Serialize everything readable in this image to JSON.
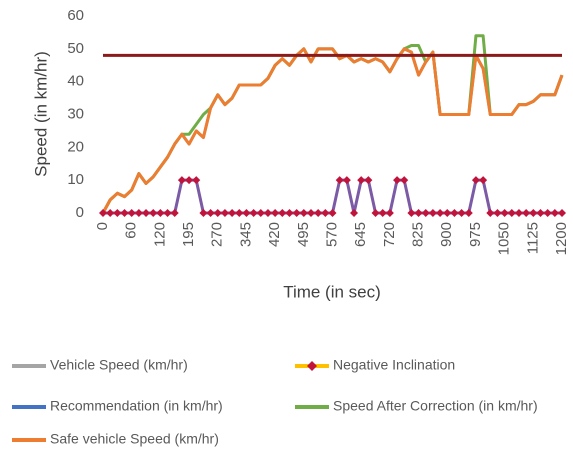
{
  "chart_data": {
    "type": "line",
    "xlabel": "Time (in sec)",
    "ylabel": "Speed (in km/hr)",
    "categories": [
      0,
      null,
      null,
      null,
      60,
      null,
      null,
      null,
      120,
      null,
      null,
      null,
      195,
      null,
      null,
      null,
      270,
      null,
      null,
      null,
      345,
      null,
      null,
      null,
      420,
      null,
      null,
      null,
      495,
      null,
      null,
      null,
      570,
      null,
      null,
      null,
      645,
      null,
      null,
      null,
      720,
      null,
      null,
      null,
      825,
      null,
      null,
      null,
      900,
      null,
      null,
      null,
      975,
      null,
      null,
      null,
      1050,
      null,
      null,
      null,
      1125,
      null,
      null,
      null,
      1200
    ],
    "ylim": [
      0,
      60
    ],
    "yticks": [
      0,
      10,
      20,
      30,
      40,
      50,
      60
    ],
    "grid": false,
    "legend": "bottom",
    "series": [
      {
        "name": "Vehicle Speed (km/hr)",
        "color": "#a5a5a5",
        "width": 3,
        "values": [
          0,
          4,
          6,
          5,
          7,
          12,
          9,
          11,
          14,
          17,
          21,
          24,
          21,
          25,
          23,
          32,
          36,
          33,
          35,
          39,
          39,
          39,
          39,
          41,
          45,
          47,
          45,
          48,
          50,
          46,
          50,
          50,
          50,
          47,
          48,
          46,
          47,
          46,
          47,
          46,
          43,
          47,
          50,
          49,
          42,
          46,
          49,
          30,
          30,
          30,
          30,
          30,
          48,
          44,
          30,
          30,
          30,
          30,
          33,
          33,
          34,
          36,
          36,
          36,
          42
        ]
      },
      {
        "name": "Negative Inclination",
        "color": "#7b5aa6",
        "legend_color": "#ffc000",
        "marker": "diamond",
        "marker_color": "#c0143c",
        "width": 3,
        "values": [
          0,
          0,
          0,
          0,
          0,
          0,
          0,
          0,
          0,
          0,
          0,
          10,
          10,
          10,
          0,
          0,
          0,
          0,
          0,
          0,
          0,
          0,
          0,
          0,
          0,
          0,
          0,
          0,
          0,
          0,
          0,
          0,
          0,
          10,
          10,
          0,
          10,
          10,
          0,
          0,
          0,
          10,
          10,
          0,
          0,
          0,
          0,
          0,
          0,
          0,
          0,
          0,
          10,
          10,
          0,
          0,
          0,
          0,
          0,
          0,
          0,
          0,
          0,
          0,
          0
        ]
      },
      {
        "name": "Recommendation (in km/hr)",
        "color": "#8b1a1a",
        "legend_color": "#4472c4",
        "width": 3,
        "values": [
          48,
          48,
          48,
          48,
          48,
          48,
          48,
          48,
          48,
          48,
          48,
          48,
          48,
          48,
          48,
          48,
          48,
          48,
          48,
          48,
          48,
          48,
          48,
          48,
          48,
          48,
          48,
          48,
          48,
          48,
          48,
          48,
          48,
          48,
          48,
          48,
          48,
          48,
          48,
          48,
          48,
          48,
          48,
          48,
          48,
          48,
          48,
          48,
          48,
          48,
          48,
          48,
          48,
          48,
          48,
          48,
          48,
          48,
          48,
          48,
          48,
          48,
          48,
          48,
          48
        ]
      },
      {
        "name": "Speed After Correction (in km/hr)",
        "color": "#70ad47",
        "width": 3,
        "values": [
          0,
          4,
          6,
          5,
          7,
          12,
          9,
          11,
          14,
          17,
          21,
          24,
          24,
          27,
          30,
          32,
          36,
          33,
          35,
          39,
          39,
          39,
          39,
          41,
          45,
          47,
          45,
          48,
          50,
          46,
          50,
          50,
          50,
          47,
          48,
          46,
          47,
          46,
          47,
          46,
          43,
          47,
          50,
          51,
          51,
          46,
          49,
          30,
          30,
          30,
          30,
          30,
          54,
          54,
          30,
          30,
          30,
          30,
          33,
          33,
          34,
          36,
          36,
          36,
          42
        ]
      },
      {
        "name": "Safe vehicle Speed (km/hr)",
        "color": "#ed7d31",
        "width": 3,
        "values": [
          0,
          4,
          6,
          5,
          7,
          12,
          9,
          11,
          14,
          17,
          21,
          24,
          21,
          25,
          23,
          32,
          36,
          33,
          35,
          39,
          39,
          39,
          39,
          41,
          45,
          47,
          45,
          48,
          50,
          46,
          50,
          50,
          50,
          47,
          48,
          46,
          47,
          46,
          47,
          46,
          43,
          47,
          50,
          49,
          42,
          46,
          49,
          30,
          30,
          30,
          30,
          30,
          48,
          44,
          30,
          30,
          30,
          30,
          33,
          33,
          34,
          36,
          36,
          36,
          42
        ]
      }
    ]
  }
}
